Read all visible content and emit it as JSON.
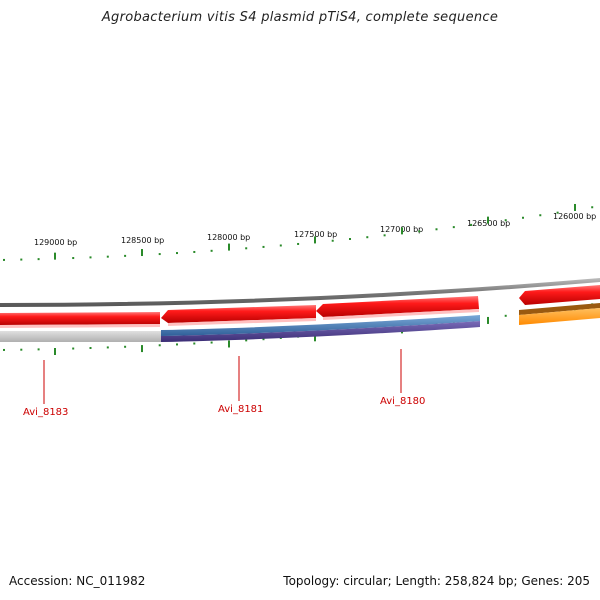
{
  "title": "Agrobacterium vitis S4 plasmid pTiS4, complete sequence",
  "footer": {
    "accession": "Accession: NC_011982",
    "summary": "Topology: circular; Length: 258,824 bp; Genes: 205"
  },
  "position_labels": [
    "129000 bp",
    "128500 bp",
    "128000 bp",
    "127500 bp",
    "127000 bp",
    "126500 bp",
    "126000 bp"
  ],
  "gene_labels": [
    "Avi_8183",
    "Avi_8181",
    "Avi_8180"
  ],
  "colors": {
    "backbone": "#888888",
    "gene_red": "#e00000",
    "gene_blue": "#3f76b0",
    "gene_purple": "#4a3c88",
    "gene_orange": "#ff9a1a",
    "gene_gray": "#bdbdbd",
    "tick": "#2a8a2a",
    "label": "#cc0000"
  }
}
